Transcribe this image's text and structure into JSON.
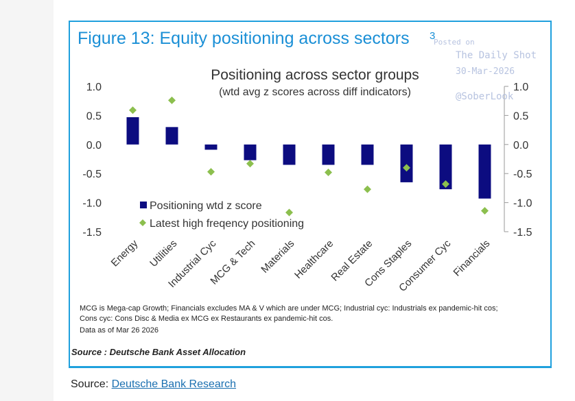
{
  "figure": {
    "title": "Figure 13: Equity positioning across sectors",
    "title_sup": "3",
    "source_note": "Source : Deutsche Bank Asset Allocation",
    "footnote_line1": "MCG is Mega-cap Growth; Financials excludes MA & V which are under MCG;  Industrial cyc: Industrials ex pandemic-hit cos;",
    "footnote_line2": "Cons cyc: Cons Disc & Media ex MCG ex Restaurants ex pandemic-hit cos.",
    "data_as_of": "Data as of Mar 26 2026"
  },
  "watermark": {
    "posted": "Posted on",
    "name": "The Daily Shot",
    "date": "30-Mar-2026",
    "handle": "@SoberLook"
  },
  "page_source": {
    "prefix": "Source: ",
    "link_text": "Deutsche Bank Research"
  },
  "colors": {
    "bar": "#0c0c80",
    "diamond": "#8cbf4e",
    "title": "#1a8fd6",
    "frame": "#1fa0dd"
  },
  "chart_data": {
    "type": "bar",
    "title": "Positioning across sector groups",
    "subtitle": "(wtd avg z scores across diff indicators)",
    "categories": [
      "Energy",
      "Utilities",
      "Industrial Cyc",
      "MCG & Tech",
      "Materials",
      "Healthcare",
      "Real Estate",
      "Cons Staples",
      "Consumer Cyc",
      "Financials"
    ],
    "series": [
      {
        "name": "Positioning wtd z score",
        "kind": "bar",
        "values": [
          0.47,
          0.3,
          -0.09,
          -0.27,
          -0.35,
          -0.35,
          -0.35,
          -0.65,
          -0.77,
          -0.93
        ]
      },
      {
        "name": "Latest high freqency positioning",
        "kind": "marker",
        "values": [
          0.59,
          0.76,
          -0.47,
          -0.33,
          -1.17,
          -0.48,
          -0.77,
          -0.4,
          -0.68,
          -1.14
        ]
      }
    ],
    "ylim": [
      -1.5,
      1.0
    ],
    "yticks": [
      "1.0",
      "0.5",
      "0.0",
      "-0.5",
      "-1.0",
      "-1.5"
    ],
    "ytick_values": [
      1.0,
      0.5,
      0.0,
      -0.5,
      -1.0,
      -1.5
    ],
    "legend_position": "lower-left",
    "xlabel": "",
    "ylabel": ""
  }
}
